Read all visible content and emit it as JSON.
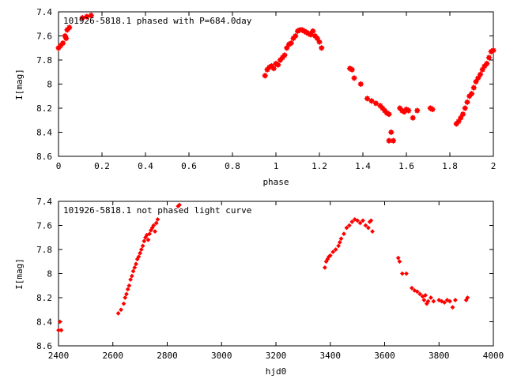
{
  "chart_data": [
    {
      "type": "scatter",
      "title": "101926-5818.1 phased with P=684.0day",
      "xlabel": "phase",
      "ylabel": "I[mag]",
      "xlim": [
        0,
        2
      ],
      "ylim": [
        7.4,
        8.6
      ],
      "y_inverted": true,
      "x_ticks": [
        "0",
        "0.2",
        "0.4",
        "0.6",
        "0.8",
        "1",
        "1.2",
        "1.4",
        "1.6",
        "1.8",
        "2"
      ],
      "y_ticks": [
        "7.4",
        "7.6",
        "7.8",
        "8",
        "8.2",
        "8.4",
        "8.6"
      ],
      "grid": false,
      "marker_color": "#ff0000",
      "series": [
        {
          "points": [
            [
              0.0,
              7.7
            ],
            [
              0.01,
              7.68
            ],
            [
              0.02,
              7.66
            ],
            [
              0.03,
              7.6
            ],
            [
              0.035,
              7.62
            ],
            [
              0.04,
              7.55
            ],
            [
              0.05,
              7.53
            ],
            [
              0.11,
              7.45
            ],
            [
              0.13,
              7.44
            ],
            [
              0.15,
              7.43
            ],
            [
              0.95,
              7.93
            ],
            [
              0.96,
              7.88
            ],
            [
              0.97,
              7.86
            ],
            [
              0.98,
              7.85
            ],
            [
              0.99,
              7.87
            ],
            [
              1.0,
              7.83
            ],
            [
              1.01,
              7.84
            ],
            [
              1.02,
              7.8
            ],
            [
              1.03,
              7.78
            ],
            [
              1.04,
              7.76
            ],
            [
              1.05,
              7.7
            ],
            [
              1.06,
              7.67
            ],
            [
              1.07,
              7.66
            ],
            [
              1.08,
              7.62
            ],
            [
              1.09,
              7.6
            ],
            [
              1.1,
              7.56
            ],
            [
              1.11,
              7.55
            ],
            [
              1.12,
              7.55
            ],
            [
              1.13,
              7.56
            ],
            [
              1.14,
              7.57
            ],
            [
              1.15,
              7.58
            ],
            [
              1.16,
              7.59
            ],
            [
              1.17,
              7.56
            ],
            [
              1.18,
              7.6
            ],
            [
              1.19,
              7.62
            ],
            [
              1.2,
              7.65
            ],
            [
              1.21,
              7.7
            ],
            [
              1.34,
              7.87
            ],
            [
              1.35,
              7.88
            ],
            [
              1.36,
              7.95
            ],
            [
              1.39,
              8.0
            ],
            [
              1.42,
              8.12
            ],
            [
              1.44,
              8.14
            ],
            [
              1.46,
              8.16
            ],
            [
              1.48,
              8.18
            ],
            [
              1.49,
              8.2
            ],
            [
              1.5,
              8.22
            ],
            [
              1.51,
              8.24
            ],
            [
              1.52,
              8.25
            ],
            [
              1.53,
              8.4
            ],
            [
              1.52,
              8.47
            ],
            [
              1.54,
              8.47
            ],
            [
              1.57,
              8.2
            ],
            [
              1.58,
              8.22
            ],
            [
              1.59,
              8.23
            ],
            [
              1.6,
              8.21
            ],
            [
              1.61,
              8.22
            ],
            [
              1.63,
              8.28
            ],
            [
              1.65,
              8.22
            ],
            [
              1.71,
              8.2
            ],
            [
              1.72,
              8.21
            ],
            [
              1.83,
              8.33
            ],
            [
              1.84,
              8.31
            ],
            [
              1.85,
              8.28
            ],
            [
              1.86,
              8.25
            ],
            [
              1.87,
              8.2
            ],
            [
              1.88,
              8.15
            ],
            [
              1.89,
              8.1
            ],
            [
              1.9,
              8.08
            ],
            [
              1.91,
              8.03
            ],
            [
              1.92,
              7.98
            ],
            [
              1.93,
              7.95
            ],
            [
              1.94,
              7.92
            ],
            [
              1.95,
              7.88
            ],
            [
              1.96,
              7.85
            ],
            [
              1.97,
              7.83
            ],
            [
              1.98,
              7.78
            ],
            [
              1.99,
              7.73
            ],
            [
              2.0,
              7.72
            ]
          ]
        }
      ]
    },
    {
      "type": "scatter",
      "title": "101926-5818.1 not phased light curve",
      "xlabel": "hjd0",
      "ylabel": "I[mag]",
      "xlim": [
        2400,
        4000
      ],
      "ylim": [
        7.4,
        8.6
      ],
      "y_inverted": true,
      "x_ticks": [
        "2400",
        "2600",
        "2800",
        "3000",
        "3200",
        "3400",
        "3600",
        "3800",
        "4000"
      ],
      "y_ticks": [
        "7.4",
        "7.6",
        "7.8",
        "8",
        "8.2",
        "8.4",
        "8.6"
      ],
      "grid": false,
      "marker_color": "#ff0000",
      "series": [
        {
          "points": [
            [
              2400,
              8.47
            ],
            [
              2405,
              8.4
            ],
            [
              2410,
              8.47
            ],
            [
              2620,
              8.33
            ],
            [
              2630,
              8.3
            ],
            [
              2640,
              8.25
            ],
            [
              2645,
              8.2
            ],
            [
              2650,
              8.17
            ],
            [
              2655,
              8.13
            ],
            [
              2660,
              8.1
            ],
            [
              2665,
              8.05
            ],
            [
              2670,
              8.02
            ],
            [
              2675,
              7.98
            ],
            [
              2680,
              7.95
            ],
            [
              2685,
              7.92
            ],
            [
              2690,
              7.88
            ],
            [
              2695,
              7.86
            ],
            [
              2700,
              7.83
            ],
            [
              2705,
              7.8
            ],
            [
              2710,
              7.77
            ],
            [
              2715,
              7.73
            ],
            [
              2720,
              7.7
            ],
            [
              2725,
              7.68
            ],
            [
              2730,
              7.72
            ],
            [
              2735,
              7.67
            ],
            [
              2740,
              7.64
            ],
            [
              2745,
              7.62
            ],
            [
              2750,
              7.6
            ],
            [
              2755,
              7.65
            ],
            [
              2760,
              7.58
            ],
            [
              2765,
              7.55
            ],
            [
              2840,
              7.44
            ],
            [
              2845,
              7.43
            ],
            [
              3380,
              7.95
            ],
            [
              3385,
              7.9
            ],
            [
              3390,
              7.88
            ],
            [
              3395,
              7.86
            ],
            [
              3400,
              7.85
            ],
            [
              3410,
              7.82
            ],
            [
              3420,
              7.8
            ],
            [
              3430,
              7.77
            ],
            [
              3435,
              7.74
            ],
            [
              3440,
              7.71
            ],
            [
              3450,
              7.67
            ],
            [
              3460,
              7.62
            ],
            [
              3470,
              7.6
            ],
            [
              3480,
              7.57
            ],
            [
              3490,
              7.55
            ],
            [
              3500,
              7.56
            ],
            [
              3510,
              7.58
            ],
            [
              3520,
              7.56
            ],
            [
              3530,
              7.6
            ],
            [
              3540,
              7.62
            ],
            [
              3545,
              7.57
            ],
            [
              3550,
              7.56
            ],
            [
              3555,
              7.65
            ],
            [
              3650,
              7.87
            ],
            [
              3655,
              7.9
            ],
            [
              3665,
              8.0
            ],
            [
              3680,
              8.0
            ],
            [
              3700,
              8.12
            ],
            [
              3710,
              8.14
            ],
            [
              3720,
              8.15
            ],
            [
              3730,
              8.17
            ],
            [
              3740,
              8.19
            ],
            [
              3745,
              8.22
            ],
            [
              3750,
              8.18
            ],
            [
              3755,
              8.25
            ],
            [
              3760,
              8.23
            ],
            [
              3770,
              8.2
            ],
            [
              3780,
              8.23
            ],
            [
              3800,
              8.22
            ],
            [
              3810,
              8.23
            ],
            [
              3820,
              8.24
            ],
            [
              3830,
              8.22
            ],
            [
              3840,
              8.23
            ],
            [
              3850,
              8.28
            ],
            [
              3860,
              8.22
            ],
            [
              3900,
              8.22
            ],
            [
              3905,
              8.2
            ]
          ]
        }
      ]
    }
  ]
}
